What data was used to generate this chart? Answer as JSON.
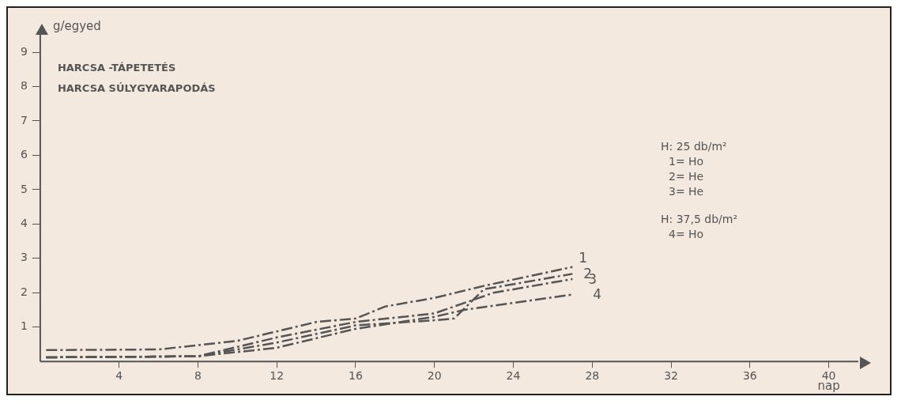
{
  "chart_data": {
    "type": "line",
    "title": "HARCSA -TÁPETETÉS",
    "subtitle": "HARCSA SÚLYGYARAPODÁS",
    "xlabel": "nap",
    "ylabel": "g/egyed",
    "xlim": [
      0,
      41.5
    ],
    "xticks": [
      4,
      8,
      12,
      16,
      20,
      24,
      28,
      32,
      36,
      40
    ],
    "ylim": [
      0,
      9.6
    ],
    "yticks": [
      1,
      2,
      3,
      4,
      5,
      6,
      7,
      8,
      9
    ],
    "grid": false,
    "legend": false,
    "marker": "none",
    "line_style": "dashed",
    "series": [
      {
        "name": "1",
        "color": "#555555",
        "x": [
          0.3,
          6,
          10,
          14,
          16,
          17.5,
          20,
          22.5,
          27
        ],
        "values": [
          0.33,
          0.35,
          0.6,
          1.15,
          1.25,
          1.6,
          1.85,
          2.2,
          2.75
        ]
      },
      {
        "name": "2",
        "color": "#555555",
        "x": [
          0.3,
          8,
          12,
          16,
          20,
          21,
          22.5,
          27
        ],
        "values": [
          0.12,
          0.15,
          0.55,
          1.05,
          1.2,
          1.25,
          2.1,
          2.55
        ]
      },
      {
        "name": "3",
        "color": "#555555",
        "x": [
          0.3,
          8,
          12,
          16,
          20,
          23,
          27
        ],
        "values": [
          0.12,
          0.15,
          0.7,
          1.15,
          1.4,
          2.0,
          2.4
        ]
      },
      {
        "name": "4",
        "color": "#555555",
        "x": [
          0.3,
          8,
          12,
          16,
          20,
          21.5,
          27
        ],
        "values": [
          0.12,
          0.15,
          0.4,
          0.95,
          1.3,
          1.5,
          1.95
        ]
      }
    ],
    "annotations": [
      "H: 25 db/m²",
      "1= Ho",
      "2= He",
      "3= He",
      "H: 37,5 db/m²",
      "4= Ho"
    ]
  }
}
